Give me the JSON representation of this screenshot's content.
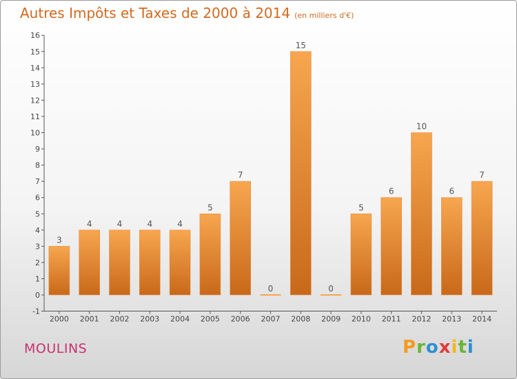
{
  "header": {
    "title": "Autres Impôts et Taxes de 2000 à 2014",
    "unit": "(en milliers d'€)"
  },
  "footer": {
    "location": "MOULINS",
    "brand": "Proxiti"
  },
  "colors": {
    "title": "#d2691e",
    "location": "#c8326e",
    "bar_top": "#f7a64f",
    "bar_bottom": "#c8691a"
  },
  "chart_data": {
    "type": "bar",
    "title": "Autres Impôts et Taxes de 2000 à 2014",
    "subtitle": "(en milliers d'€)",
    "categories": [
      "2000",
      "2001",
      "2002",
      "2003",
      "2004",
      "2005",
      "2006",
      "2007",
      "2008",
      "2009",
      "2010",
      "2011",
      "2012",
      "2013",
      "2014"
    ],
    "values": [
      3,
      4,
      4,
      4,
      4,
      5,
      7,
      0,
      15,
      0,
      5,
      6,
      10,
      6,
      7
    ],
    "ylim": [
      -1,
      16
    ],
    "yticks": [
      -1,
      0,
      1,
      2,
      3,
      4,
      5,
      6,
      7,
      8,
      9,
      10,
      11,
      12,
      13,
      14,
      15,
      16
    ],
    "xlabel": "",
    "ylabel": "",
    "grid": false,
    "legend": "none"
  }
}
